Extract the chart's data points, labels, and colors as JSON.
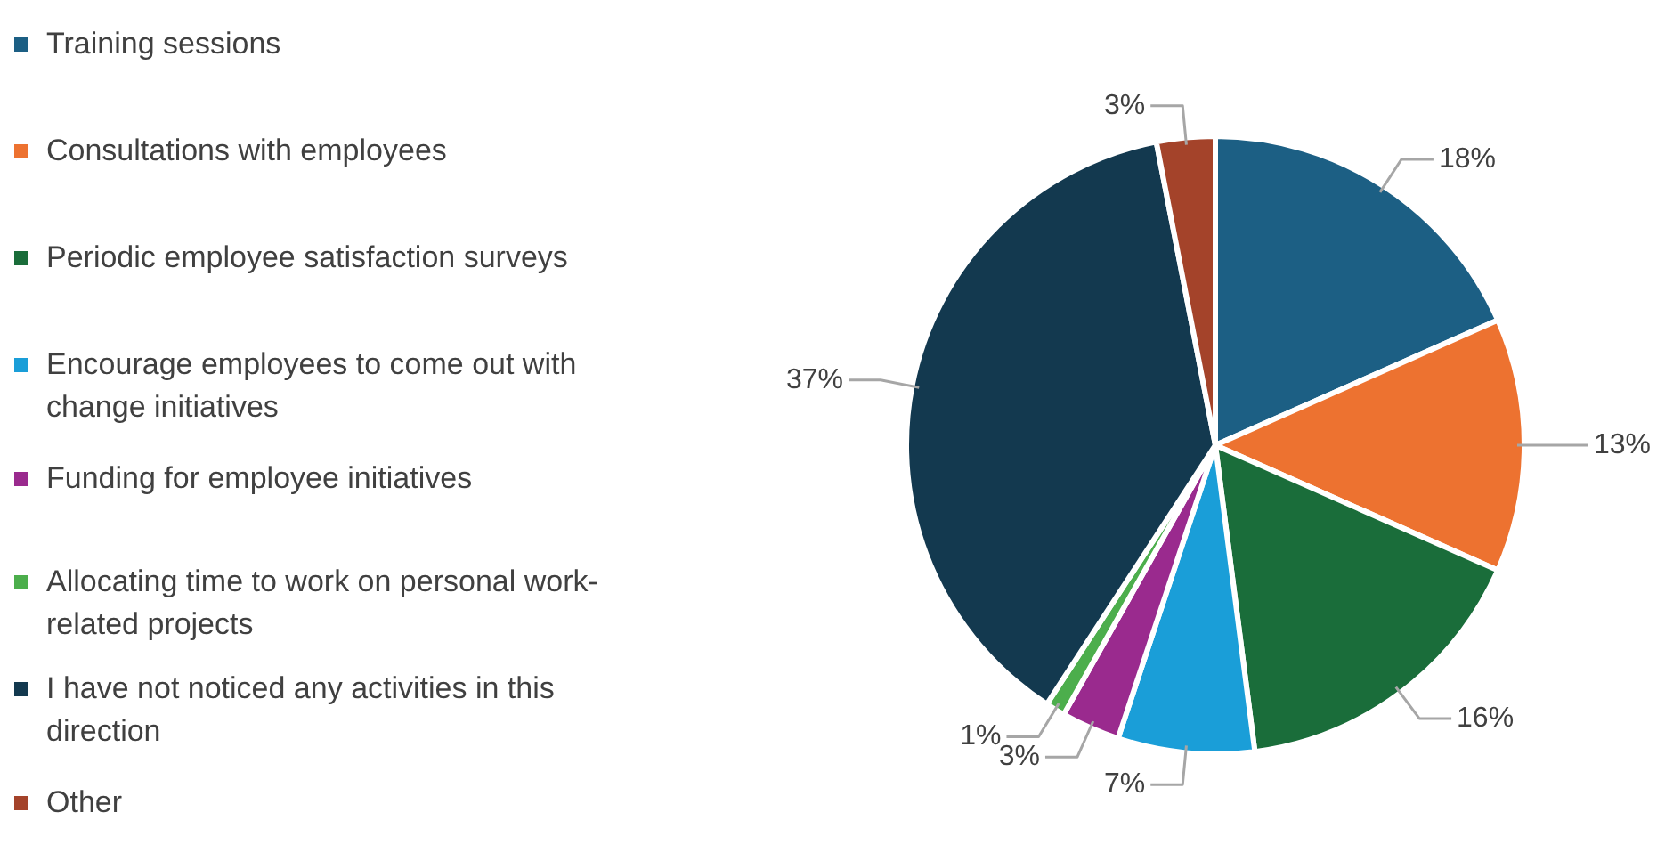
{
  "chart_data": {
    "type": "pie",
    "categories": [
      "Training sessions",
      "Consultations with employees",
      "Periodic employee satisfaction surveys",
      "Encourage employees to come out with change initiatives",
      "Funding for employee initiatives",
      "Allocating time to work on personal work-related projects",
      "I have not noticed any activities in this direction",
      "Other"
    ],
    "values": [
      18,
      13,
      16,
      7,
      3,
      1,
      37,
      3
    ],
    "value_labels": [
      "18%",
      "13%",
      "16%",
      "7%",
      "3%",
      "1%",
      "37%",
      "3%"
    ],
    "colors": [
      "#1c5f84",
      "#ed7230",
      "#1a6d3a",
      "#1a9ed8",
      "#9a2a8e",
      "#4cae4c",
      "#13394f",
      "#a4432a"
    ],
    "legend": "left"
  }
}
